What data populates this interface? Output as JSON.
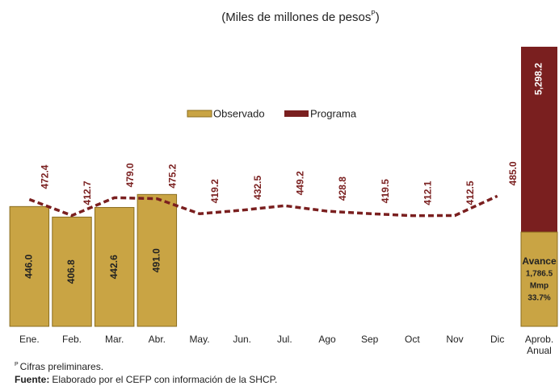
{
  "chart_data": {
    "type": "bar-line",
    "subtitle": "(Miles de millones de pesos",
    "subtitle_sup": "P",
    "subtitle_end": ")",
    "categories": [
      "Ene.",
      "Feb.",
      "Mar.",
      "Abr.",
      "May.",
      "Jun.",
      "Jul.",
      "Ago",
      "Sep",
      "Oct",
      "Nov",
      "Dic"
    ],
    "series": [
      {
        "name": "Observado",
        "color": "#c9a444",
        "kind": "bar",
        "values": [
          446.0,
          406.8,
          442.6,
          491.0,
          null,
          null,
          null,
          null,
          null,
          null,
          null,
          null
        ],
        "value_labels": [
          "446.0",
          "406.8",
          "442.6",
          "491.0",
          null,
          null,
          null,
          null,
          null,
          null,
          null,
          null
        ]
      },
      {
        "name": "Programa",
        "color": "#7a1f1f",
        "kind": "line",
        "values": [
          472.4,
          412.7,
          479.0,
          475.2,
          419.2,
          432.5,
          449.2,
          428.8,
          419.5,
          412.1,
          412.5,
          485.0
        ],
        "value_labels": [
          "472.4",
          "412.7",
          "479.0",
          "475.2",
          "419.2",
          "432.5",
          "449.2",
          "428.8",
          "419.5",
          "412.1",
          "412.5",
          "485.0"
        ]
      }
    ],
    "ylim": [
      0,
      1170
    ],
    "annual": {
      "category": [
        "Aprob.",
        "Anual"
      ],
      "total": {
        "value": 5298.2,
        "value_label": "5,298.2",
        "color": "#7a1f1f"
      },
      "avance": {
        "label": "Avance",
        "value": 1786.5,
        "value_label": "1,786.5",
        "unit": "Mmp",
        "percent": 33.7,
        "percent_label": "33.7%",
        "color": "#c9a444"
      }
    },
    "footnote_sup": "P",
    "footnote": "Cifras preliminares.",
    "source_label": "Fuente:",
    "source": "Elaborado por el CEFP con información de la SHCP."
  }
}
